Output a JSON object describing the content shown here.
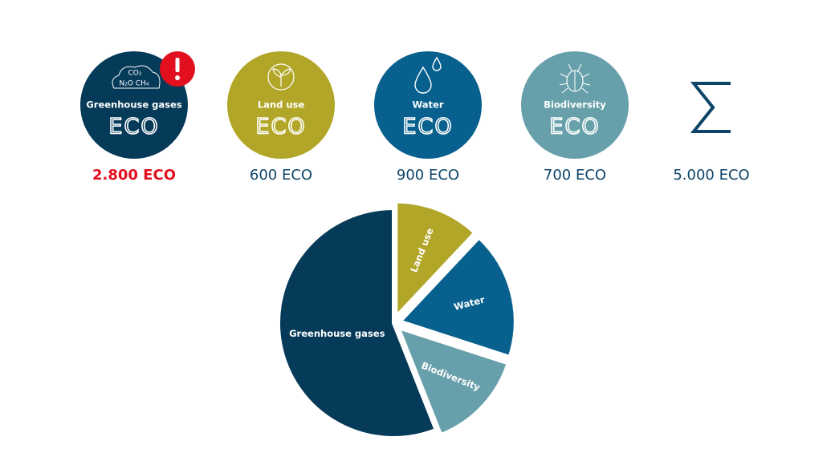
{
  "chart_data": {
    "type": "pie",
    "categories": [
      "Greenhouse gases",
      "Land use",
      "Water",
      "Biodiversity"
    ],
    "values": [
      2800,
      600,
      900,
      700
    ],
    "value_labels": [
      "2.800 ECO",
      "600 ECO",
      "900 ECO",
      "700 ECO"
    ],
    "colors": [
      "#063a59",
      "#b2a628",
      "#07608d",
      "#67a0aa"
    ],
    "total": 5000,
    "total_label": "5.000 ECO",
    "logo": "ECO",
    "icon_texts": [
      "CO₂",
      "N₂O CH₄"
    ]
  }
}
